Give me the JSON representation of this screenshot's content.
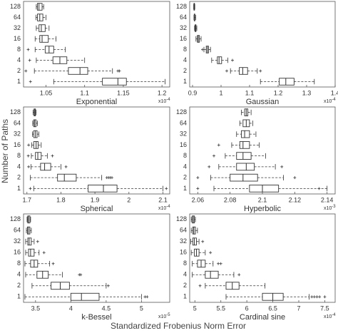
{
  "figure": {
    "ylabel": "Number of Paths",
    "xlabel": "Standardized Frobenius Norm Error"
  },
  "chart_data": [
    {
      "type": "box",
      "title": "Exponential",
      "x_multiplier": "x10",
      "x_exponent": "-4",
      "color": "#333333",
      "categories": [
        "128",
        "64",
        "32",
        "16",
        "8",
        "4",
        "2",
        "1"
      ],
      "xlim": [
        1.021,
        1.21
      ],
      "xticks": [
        1.05,
        1.1,
        1.15,
        1.2
      ],
      "boxes": [
        {
          "whislo": 1.0375,
          "q1": 1.039,
          "med": 1.041,
          "q3": 1.045,
          "whishi": 1.047,
          "fliers": []
        },
        {
          "whislo": 1.037,
          "q1": 1.039,
          "med": 1.042,
          "q3": 1.046,
          "whishi": 1.05,
          "fliers": []
        },
        {
          "whislo": 1.0375,
          "q1": 1.041,
          "med": 1.044,
          "q3": 1.049,
          "whishi": 1.054,
          "fliers": []
        },
        {
          "whislo": 1.036,
          "q1": 1.042,
          "med": 1.045,
          "q3": 1.053,
          "whishi": 1.063,
          "fliers": []
        },
        {
          "whislo": 1.036,
          "q1": 1.049,
          "med": 1.054,
          "q3": 1.06,
          "whishi": 1.075,
          "fliers": [
            1.027
          ]
        },
        {
          "whislo": 1.0375,
          "q1": 1.059,
          "med": 1.068,
          "q3": 1.077,
          "whishi": 1.1,
          "fliers": [
            1.029
          ]
        },
        {
          "whislo": 1.035,
          "q1": 1.079,
          "med": 1.094,
          "q3": 1.104,
          "whishi": 1.136,
          "fliers": [
            1.024,
            1.143,
            1.145
          ]
        },
        {
          "whislo": 1.06,
          "q1": 1.123,
          "med": 1.143,
          "q3": 1.154,
          "whishi": 1.204,
          "fliers": [
            1.03
          ]
        }
      ]
    },
    {
      "type": "box",
      "title": "Gaussian",
      "x_multiplier": "x10",
      "x_exponent": "-4",
      "color": "#333333",
      "categories": [
        "128",
        "64",
        "32",
        "16",
        "8",
        "4",
        "2",
        "1"
      ],
      "xlim": [
        0.89,
        1.4
      ],
      "xticks": [
        0.9,
        1,
        1.1,
        1.2,
        1.3,
        1.4
      ],
      "boxes": [
        {
          "whislo": 0.904,
          "q1": 0.905,
          "med": 0.906,
          "q3": 0.907,
          "whishi": 0.908,
          "fliers": []
        },
        {
          "whislo": 0.905,
          "q1": 0.906,
          "med": 0.907,
          "q3": 0.908,
          "whishi": 0.911,
          "fliers": []
        },
        {
          "whislo": 0.907,
          "q1": 0.909,
          "med": 0.91,
          "q3": 0.912,
          "whishi": 0.915,
          "fliers": []
        },
        {
          "whislo": 0.912,
          "q1": 0.917,
          "med": 0.92,
          "q3": 0.924,
          "whishi": 0.93,
          "fliers": []
        },
        {
          "whislo": 0.94,
          "q1": 0.948,
          "med": 0.952,
          "q3": 0.956,
          "whishi": 0.963,
          "fliers": [
            0.935
          ]
        },
        {
          "whislo": 0.967,
          "q1": 0.987,
          "med": 0.993,
          "q3": 1.002,
          "whishi": 1.024,
          "fliers": [
            1.04
          ]
        },
        {
          "whislo": 1.033,
          "q1": 1.064,
          "med": 1.076,
          "q3": 1.093,
          "whishi": 1.127,
          "fliers": [
            1.02,
            1.138
          ]
        },
        {
          "whislo": 1.138,
          "q1": 1.204,
          "med": 1.227,
          "q3": 1.256,
          "whishi": 1.327,
          "fliers": []
        }
      ]
    },
    {
      "type": "box",
      "title": "Spherical",
      "x_multiplier": "x10",
      "x_exponent": "-4",
      "color": "#333333",
      "categories": [
        "128",
        "64",
        "32",
        "16",
        "8",
        "4",
        "2",
        "1"
      ],
      "xlim": [
        1.69,
        2.12
      ],
      "xticks": [
        1.7,
        1.8,
        1.9,
        2,
        2.1
      ],
      "boxes": [
        {
          "whislo": 1.718,
          "q1": 1.721,
          "med": 1.723,
          "q3": 1.725,
          "whishi": 1.727,
          "fliers": []
        },
        {
          "whislo": 1.717,
          "q1": 1.72,
          "med": 1.723,
          "q3": 1.727,
          "whishi": 1.731,
          "fliers": []
        },
        {
          "whislo": 1.716,
          "q1": 1.72,
          "med": 1.725,
          "q3": 1.73,
          "whishi": 1.735,
          "fliers": []
        },
        {
          "whislo": 1.714,
          "q1": 1.72,
          "med": 1.727,
          "q3": 1.733,
          "whishi": 1.742,
          "fliers": [
            1.705
          ]
        },
        {
          "whislo": 1.713,
          "q1": 1.725,
          "med": 1.732,
          "q3": 1.742,
          "whishi": 1.76,
          "fliers": [
            1.704,
            1.775
          ]
        },
        {
          "whislo": 1.712,
          "q1": 1.74,
          "med": 1.752,
          "q3": 1.77,
          "whishi": 1.8,
          "fliers": [
            1.705,
            1.815
          ]
        },
        {
          "whislo": 1.71,
          "q1": 1.79,
          "med": 1.81,
          "q3": 1.845,
          "whishi": 1.92,
          "fliers": [
            1.935,
            1.94,
            1.945,
            1.95
          ]
        },
        {
          "whislo": 1.72,
          "q1": 1.88,
          "med": 1.925,
          "q3": 1.965,
          "whishi": 2.1,
          "fliers": [
            1.71,
            2.11
          ]
        }
      ]
    },
    {
      "type": "box",
      "title": "Hyperbolic",
      "x_multiplier": "x10",
      "x_exponent": "-3",
      "color": "#333333",
      "categories": [
        "128",
        "64",
        "32",
        "16",
        "8",
        "4",
        "2",
        "1"
      ],
      "xlim": [
        2.055,
        2.145
      ],
      "xticks": [
        2.06,
        2.08,
        2.1,
        2.12,
        2.14
      ],
      "boxes": [
        {
          "whislo": 2.087,
          "q1": 2.089,
          "med": 2.09,
          "q3": 2.091,
          "whishi": 2.093,
          "fliers": []
        },
        {
          "whislo": 2.086,
          "q1": 2.088,
          "med": 2.09,
          "q3": 2.092,
          "whishi": 2.094,
          "fliers": []
        },
        {
          "whislo": 2.084,
          "q1": 2.087,
          "med": 2.089,
          "q3": 2.092,
          "whishi": 2.096,
          "fliers": []
        },
        {
          "whislo": 2.081,
          "q1": 2.086,
          "med": 2.088,
          "q3": 2.092,
          "whishi": 2.098,
          "fliers": [
            2.073
          ]
        },
        {
          "whislo": 2.077,
          "q1": 2.084,
          "med": 2.088,
          "q3": 2.093,
          "whishi": 2.102,
          "fliers": [
            2.07
          ]
        },
        {
          "whislo": 2.073,
          "q1": 2.084,
          "med": 2.09,
          "q3": 2.095,
          "whishi": 2.108,
          "fliers": [
            2.067,
            2.112
          ]
        },
        {
          "whislo": 2.068,
          "q1": 2.08,
          "med": 2.088,
          "q3": 2.097,
          "whishi": 2.113,
          "fliers": [
            2.06,
            2.12
          ]
        },
        {
          "whislo": 2.07,
          "q1": 2.092,
          "med": 2.1,
          "q3": 2.11,
          "whishi": 2.14,
          "fliers": [
            2.06,
            2.135
          ]
        }
      ]
    },
    {
      "type": "box",
      "title": "k-Bessel",
      "x_multiplier": "x10",
      "x_exponent": "-5",
      "color": "#333333",
      "categories": [
        "128",
        "64",
        "32",
        "16",
        "8",
        "4",
        "2",
        "1"
      ],
      "xlim": [
        3.33,
        5.4
      ],
      "xticks": [
        3.5,
        4,
        4.5,
        5
      ],
      "boxes": [
        {
          "whislo": 3.38,
          "q1": 3.39,
          "med": 3.4,
          "q3": 3.42,
          "whishi": 3.43,
          "fliers": []
        },
        {
          "whislo": 3.37,
          "q1": 3.385,
          "med": 3.4,
          "q3": 3.42,
          "whishi": 3.44,
          "fliers": []
        },
        {
          "whislo": 3.36,
          "q1": 3.39,
          "med": 3.41,
          "q3": 3.44,
          "whishi": 3.48,
          "fliers": [
            3.53
          ]
        },
        {
          "whislo": 3.36,
          "q1": 3.4,
          "med": 3.43,
          "q3": 3.48,
          "whishi": 3.55,
          "fliers": [
            3.62
          ]
        },
        {
          "whislo": 3.35,
          "q1": 3.43,
          "med": 3.48,
          "q3": 3.53,
          "whishi": 3.7,
          "fliers": [
            3.75
          ]
        },
        {
          "whislo": 3.36,
          "q1": 3.52,
          "med": 3.6,
          "q3": 3.68,
          "whishi": 3.88,
          "fliers": [
            4.12,
            4.14
          ]
        },
        {
          "whislo": 3.45,
          "q1": 3.72,
          "med": 3.85,
          "q3": 3.98,
          "whishi": 4.5,
          "fliers": [
            4.53
          ]
        },
        {
          "whislo": 3.35,
          "q1": 4.0,
          "med": 4.15,
          "q3": 4.4,
          "whishi": 5.0,
          "fliers": [
            5.05,
            5.08
          ]
        }
      ]
    },
    {
      "type": "box",
      "title": "Cardinal sine",
      "x_multiplier": "x10",
      "x_exponent": "-4",
      "color": "#333333",
      "categories": [
        "128",
        "64",
        "32",
        "16",
        "8",
        "4",
        "2",
        "1"
      ],
      "xlim": [
        4.9,
        7.7
      ],
      "xticks": [
        5,
        5.5,
        6,
        6.5,
        7,
        7.5
      ],
      "boxes": [
        {
          "whislo": 4.93,
          "q1": 4.95,
          "med": 4.97,
          "q3": 4.99,
          "whishi": 5.01,
          "fliers": []
        },
        {
          "whislo": 4.93,
          "q1": 4.96,
          "med": 4.98,
          "q3": 5.01,
          "whishi": 5.05,
          "fliers": []
        },
        {
          "whislo": 4.92,
          "q1": 4.96,
          "med": 4.99,
          "q3": 5.03,
          "whishi": 5.08,
          "fliers": [
            5.15
          ]
        },
        {
          "whislo": 4.93,
          "q1": 4.99,
          "med": 5.03,
          "q3": 5.08,
          "whishi": 5.2,
          "fliers": [
            5.3
          ]
        },
        {
          "whislo": 4.95,
          "q1": 5.05,
          "med": 5.12,
          "q3": 5.2,
          "whishi": 5.35,
          "fliers": [
            5.45,
            5.5
          ]
        },
        {
          "whislo": 4.95,
          "q1": 5.2,
          "med": 5.3,
          "q3": 5.45,
          "whishi": 5.75,
          "fliers": [
            5.85
          ]
        },
        {
          "whislo": 5.2,
          "q1": 5.6,
          "med": 5.72,
          "q3": 5.85,
          "whishi": 6.35,
          "fliers": [
            5.1
          ]
        },
        {
          "whislo": 5.6,
          "q1": 6.3,
          "med": 6.5,
          "q3": 6.7,
          "whishi": 7.2,
          "fliers": [
            7.25,
            7.3,
            7.35,
            7.4,
            7.5
          ]
        }
      ]
    }
  ]
}
